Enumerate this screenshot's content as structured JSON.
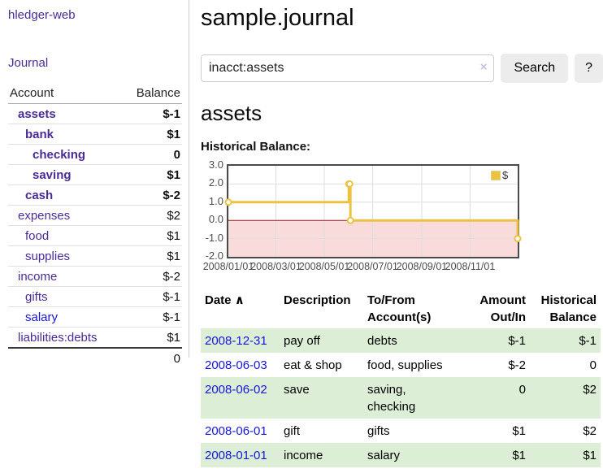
{
  "colors": {
    "link_purple": "#4a2b96",
    "link_blue": "#1616d9",
    "negative_dark_red": "#8e1527",
    "negative_muted_red": "#c48181",
    "row_green": "#dcefd6",
    "series_yellow": "#edc240"
  },
  "sidebar": {
    "app_title": "hledger-web",
    "journal_link": "Journal",
    "accounts_table": {
      "headers": {
        "account": "Account",
        "balance": "Balance"
      },
      "rows": [
        {
          "name": "assets",
          "balance": "$-1",
          "depth": 1,
          "bold": true,
          "negative": true
        },
        {
          "name": "bank",
          "balance": "$1",
          "depth": 2,
          "bold": true,
          "negative": false
        },
        {
          "name": "checking",
          "balance": "0",
          "depth": 3,
          "bold": true,
          "negative": false
        },
        {
          "name": "saving",
          "balance": "$1",
          "depth": 3,
          "bold": true,
          "negative": false
        },
        {
          "name": "cash",
          "balance": "$-2",
          "depth": 2,
          "bold": true,
          "negative": true
        },
        {
          "name": "expenses",
          "balance": "$2",
          "depth": 1,
          "bold": false,
          "negative": false
        },
        {
          "name": "food",
          "balance": "$1",
          "depth": 2,
          "bold": false,
          "negative": false
        },
        {
          "name": "supplies",
          "balance": "$1",
          "depth": 2,
          "bold": false,
          "negative": false
        },
        {
          "name": "income",
          "balance": "$-2",
          "depth": 1,
          "bold": false,
          "negative": true
        },
        {
          "name": "gifts",
          "balance": "$-1",
          "depth": 2,
          "bold": false,
          "negative": true
        },
        {
          "name": "salary",
          "balance": "$-1",
          "depth": 2,
          "bold": false,
          "negative": true,
          "link_color": "blue"
        },
        {
          "name": "liabilities:debts",
          "balance": "$1",
          "depth": 1,
          "bold": false,
          "negative": false
        }
      ],
      "total": "0"
    }
  },
  "main": {
    "title": "sample.journal",
    "search": {
      "value": "inacct:assets",
      "clear_icon": "×",
      "search_button": "Search",
      "help_button": "?"
    },
    "account_heading": "assets",
    "chart_heading": "Historical Balance:",
    "register": {
      "headers": {
        "date": "Date",
        "sort_icon": "∧",
        "description": "Description",
        "accounts": "To/From\nAccount(s)",
        "amount": "Amount\nOut/In",
        "balance": "Historical\nBalance"
      },
      "rows": [
        {
          "date": "2008-12-31",
          "description": "pay off",
          "accounts": "debts",
          "amount": "$-1",
          "amount_negative": true,
          "balance": "$-1",
          "balance_negative": true
        },
        {
          "date": "2008-06-03",
          "description": "eat & shop",
          "accounts": "food, supplies",
          "amount": "$-2",
          "amount_negative": true,
          "balance": "0",
          "balance_negative": false
        },
        {
          "date": "2008-06-02",
          "description": "save",
          "accounts": "saving,\nchecking",
          "amount": "0",
          "amount_negative": false,
          "balance": "$2",
          "balance_negative": false
        },
        {
          "date": "2008-06-01",
          "description": "gift",
          "accounts": "gifts",
          "amount": "$1",
          "amount_negative": false,
          "balance": "$2",
          "balance_negative": false
        },
        {
          "date": "2008-01-01",
          "description": "income",
          "accounts": "salary",
          "amount": "$1",
          "amount_negative": false,
          "balance": "$1",
          "balance_negative": false
        }
      ]
    }
  },
  "chart_data": {
    "type": "line",
    "step": true,
    "title": "Historical Balance:",
    "series": [
      {
        "name": "$",
        "color": "#edc240",
        "points": [
          [
            "2008-01-01",
            1
          ],
          [
            "2008-06-01",
            2
          ],
          [
            "2008-06-02",
            2
          ],
          [
            "2008-06-03",
            0
          ],
          [
            "2008-12-31",
            -1
          ]
        ]
      }
    ],
    "xlim": [
      "2008-01-01",
      "2008-12-31"
    ],
    "ylim": [
      -2,
      3
    ],
    "yticks": [
      3.0,
      2.0,
      1.0,
      0.0,
      -1.0,
      -2.0
    ],
    "ytick_labels": [
      "3.0",
      "2.0",
      "1.0",
      "0.0",
      "-1.0",
      "-2.0"
    ],
    "xticks": [
      "2008-01-01",
      "2008-03-01",
      "2008-05-01",
      "2008-07-01",
      "2008-09-01",
      "2008-11-01"
    ],
    "xtick_labels": [
      "2008/01/01",
      "2008/03/01",
      "2008/05/01",
      "2008/07/01",
      "2008/09/01",
      "2008/11/01"
    ],
    "legend": {
      "label": "$",
      "position": "top-right"
    },
    "grid": true,
    "negative_region_color": "#f9dbdb",
    "zero_line_color": "#8b1c1c",
    "plot_border_color": "#4a4a4a"
  }
}
